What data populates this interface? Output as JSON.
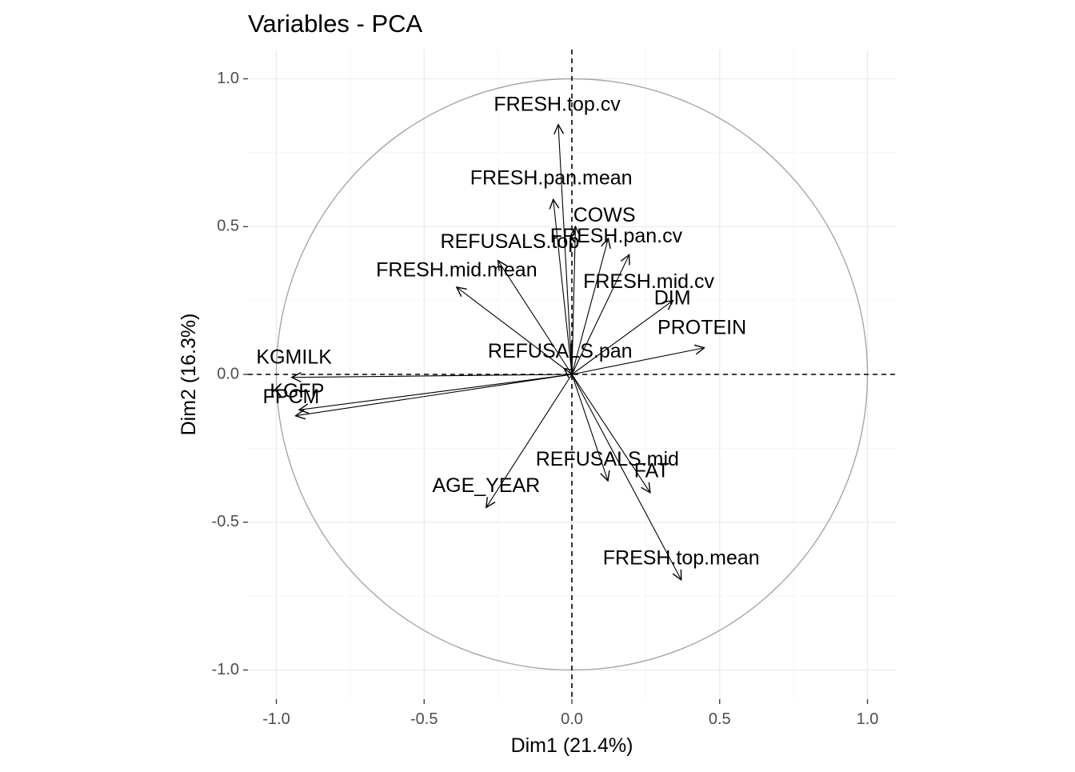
{
  "chart_data": {
    "type": "scatter",
    "subtype": "pca-correlation-circle",
    "title": "Variables - PCA",
    "xlabel": "Dim1 (21.4%)",
    "ylabel": "Dim2 (16.3%)",
    "xlim": [
      -1.1,
      1.1
    ],
    "ylim": [
      -1.1,
      1.1
    ],
    "x_ticks": [
      -1.0,
      -0.5,
      0.0,
      0.5,
      1.0
    ],
    "x_tick_labels": [
      "-1.0",
      "-0.5",
      "0.0",
      "0.5",
      "1.0"
    ],
    "y_ticks": [
      -1.0,
      -0.5,
      0.0,
      0.5,
      1.0
    ],
    "y_tick_labels": [
      "-1.0",
      "-0.5",
      "0.0",
      "0.5",
      "1.0"
    ],
    "grid": true,
    "unit_circle": true,
    "reference_lines": [
      0,
      0
    ],
    "colors": {
      "arrow": "#000000",
      "circle": "#a6a6a6",
      "grid_major": "#ebebeb",
      "grid_minor": "#f5f5f5",
      "reference_line": "#000000"
    },
    "variables": [
      {
        "name": "FRESH.top.cv",
        "x": -0.046,
        "y": 0.845,
        "label_x": -0.05,
        "label_y": 0.91
      },
      {
        "name": "FRESH.pan.mean",
        "x": -0.063,
        "y": 0.592,
        "label_x": -0.07,
        "label_y": 0.66
      },
      {
        "name": "COWS",
        "x": 0.012,
        "y": 0.5,
        "label_x": 0.11,
        "label_y": 0.535
      },
      {
        "name": "FRESH.pan.cv",
        "x": 0.123,
        "y": 0.46,
        "label_x": 0.15,
        "label_y": 0.465
      },
      {
        "name": "REFUSALS.top",
        "x": -0.25,
        "y": 0.385,
        "label_x": -0.21,
        "label_y": 0.445
      },
      {
        "name": "FRESH.mid.cv",
        "x": 0.194,
        "y": 0.405,
        "label_x": 0.26,
        "label_y": 0.31
      },
      {
        "name": "FRESH.mid.mean",
        "x": -0.39,
        "y": 0.295,
        "label_x": -0.39,
        "label_y": 0.35
      },
      {
        "name": "DIM",
        "x": 0.342,
        "y": 0.25,
        "label_x": 0.34,
        "label_y": 0.255
      },
      {
        "name": "PROTEIN",
        "x": 0.448,
        "y": 0.09,
        "label_x": 0.44,
        "label_y": 0.155
      },
      {
        "name": "REFUSALS.pan",
        "x": -0.026,
        "y": 0.02,
        "label_x": -0.04,
        "label_y": 0.075
      },
      {
        "name": "KGMILK",
        "x": -0.948,
        "y": -0.01,
        "label_x": -0.94,
        "label_y": 0.055
      },
      {
        "name": "KGFP",
        "x": -0.923,
        "y": -0.12,
        "label_x": -0.93,
        "label_y": -0.06
      },
      {
        "name": "FPCM",
        "x": -0.935,
        "y": -0.14,
        "label_x": -0.95,
        "label_y": -0.08
      },
      {
        "name": "REFUSALS.mid",
        "x": 0.122,
        "y": -0.36,
        "label_x": 0.12,
        "label_y": -0.29
      },
      {
        "name": "FAT",
        "x": 0.265,
        "y": -0.4,
        "label_x": 0.27,
        "label_y": -0.33
      },
      {
        "name": "AGE_YEAR",
        "x": -0.29,
        "y": -0.45,
        "label_x": -0.29,
        "label_y": -0.38
      },
      {
        "name": "FRESH.top.mean",
        "x": 0.37,
        "y": -0.695,
        "label_x": 0.37,
        "label_y": -0.625
      }
    ]
  }
}
